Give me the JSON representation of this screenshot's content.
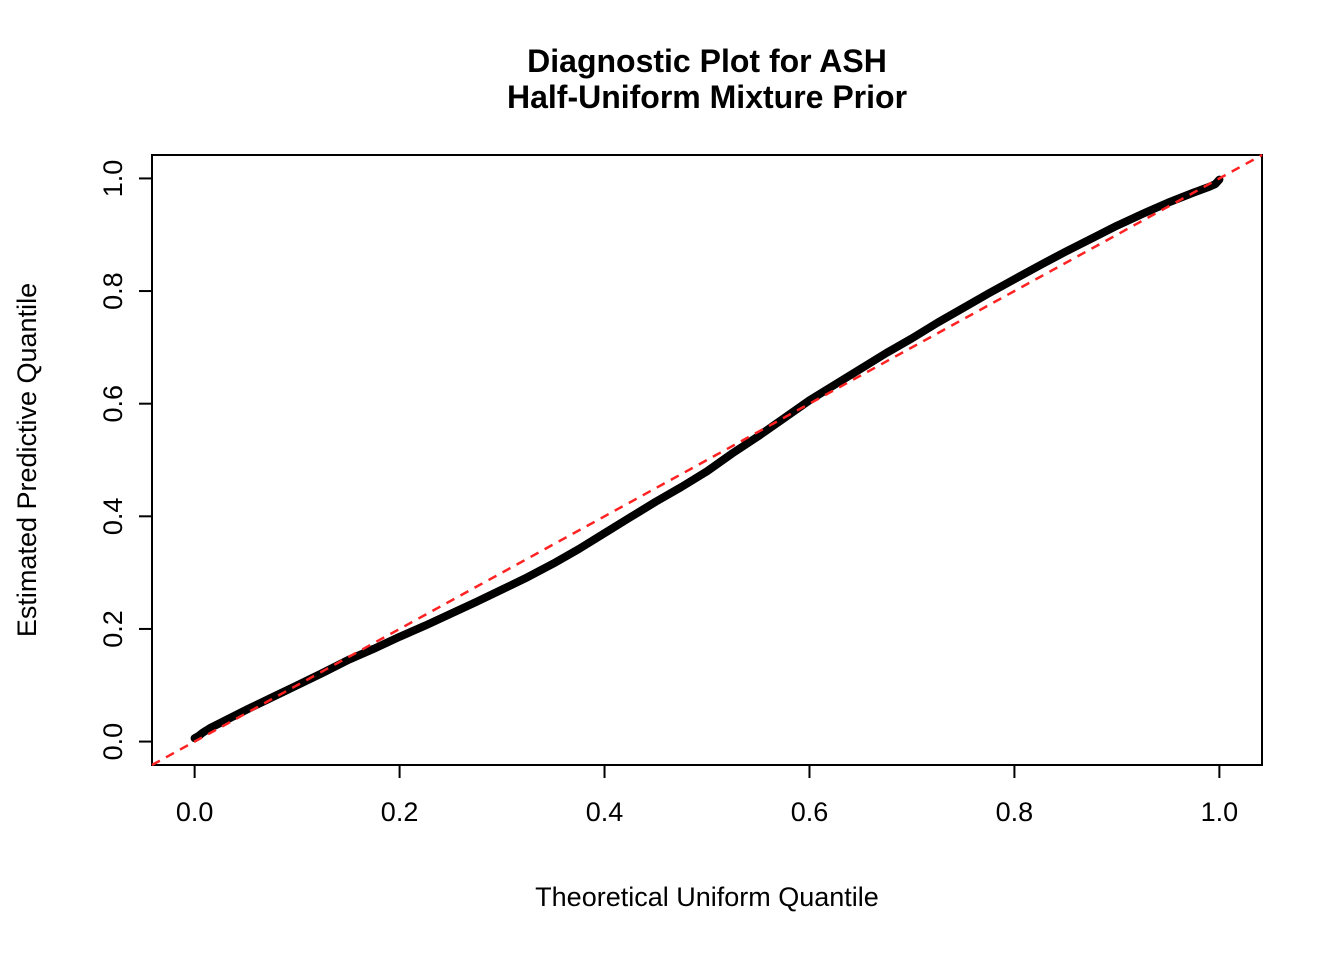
{
  "colors": {
    "background": "#ffffff",
    "curve": "#000000",
    "reference_line": "#ff2222",
    "axis": "#000000"
  },
  "chart_data": {
    "type": "scatter",
    "title": "Diagnostic Plot for ASH\nHalf-Uniform Mixture Prior",
    "title_lines": [
      "Diagnostic Plot for ASH",
      "Half-Uniform Mixture Prior"
    ],
    "xlabel": "Theoretical Uniform Quantile",
    "ylabel": "Estimated Predictive Quantile",
    "xlim": [
      -0.0416,
      1.0416
    ],
    "ylim": [
      -0.0416,
      1.0416
    ],
    "xticks": [
      0.0,
      0.2,
      0.4,
      0.6,
      0.8,
      1.0
    ],
    "yticks": [
      0.0,
      0.2,
      0.4,
      0.6,
      0.8,
      1.0
    ],
    "xtick_labels": [
      "0.0",
      "0.2",
      "0.4",
      "0.6",
      "0.8",
      "1.0"
    ],
    "ytick_labels": [
      "0.0",
      "0.2",
      "0.4",
      "0.6",
      "0.8",
      "1.0"
    ],
    "grid": false,
    "legend": null,
    "series": [
      {
        "name": "estimated-predictive-quantiles",
        "color": "#000000",
        "style": "thick-points",
        "points": [
          [
            0.0,
            0.006
          ],
          [
            0.004,
            0.01
          ],
          [
            0.008,
            0.016
          ],
          [
            0.015,
            0.024
          ],
          [
            0.025,
            0.033
          ],
          [
            0.05,
            0.056
          ],
          [
            0.075,
            0.078
          ],
          [
            0.1,
            0.1
          ],
          [
            0.125,
            0.122
          ],
          [
            0.15,
            0.145
          ],
          [
            0.175,
            0.165
          ],
          [
            0.2,
            0.186
          ],
          [
            0.225,
            0.206
          ],
          [
            0.25,
            0.227
          ],
          [
            0.275,
            0.248
          ],
          [
            0.3,
            0.27
          ],
          [
            0.325,
            0.292
          ],
          [
            0.35,
            0.316
          ],
          [
            0.375,
            0.342
          ],
          [
            0.4,
            0.37
          ],
          [
            0.425,
            0.398
          ],
          [
            0.45,
            0.426
          ],
          [
            0.475,
            0.452
          ],
          [
            0.5,
            0.48
          ],
          [
            0.525,
            0.512
          ],
          [
            0.55,
            0.542
          ],
          [
            0.575,
            0.574
          ],
          [
            0.6,
            0.606
          ],
          [
            0.625,
            0.634
          ],
          [
            0.65,
            0.662
          ],
          [
            0.675,
            0.69
          ],
          [
            0.7,
            0.716
          ],
          [
            0.725,
            0.744
          ],
          [
            0.75,
            0.77
          ],
          [
            0.775,
            0.796
          ],
          [
            0.8,
            0.821
          ],
          [
            0.825,
            0.846
          ],
          [
            0.85,
            0.87
          ],
          [
            0.875,
            0.893
          ],
          [
            0.9,
            0.916
          ],
          [
            0.925,
            0.937
          ],
          [
            0.95,
            0.957
          ],
          [
            0.975,
            0.975
          ],
          [
            0.99,
            0.985
          ],
          [
            0.996,
            0.99
          ],
          [
            1.0,
            0.998
          ]
        ]
      },
      {
        "name": "identity-reference-line",
        "color": "#ff2222",
        "style": "dashed",
        "points": [
          [
            -0.0416,
            -0.0416
          ],
          [
            1.0416,
            1.0416
          ]
        ]
      }
    ]
  }
}
